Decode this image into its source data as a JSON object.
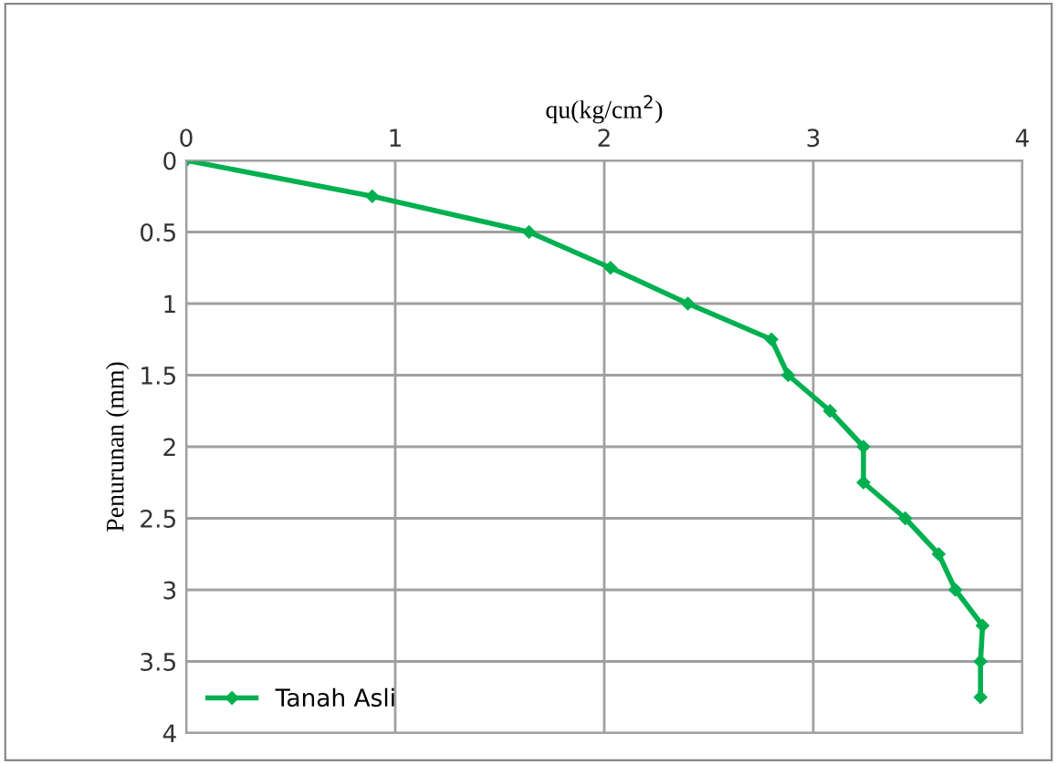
{
  "chart_data": {
    "type": "line",
    "xlabel": "qu(kg/cm$^{2}$)",
    "ylabel": "Penurunan (mm)",
    "xlim": [
      0,
      4
    ],
    "xticks": [
      0,
      1,
      2,
      3,
      4
    ],
    "ylim": [
      4,
      0
    ],
    "yticks": [
      0,
      0.5,
      1,
      1.5,
      2,
      2.5,
      3,
      3.5,
      4
    ],
    "grid": true,
    "legend": "bottom left",
    "marker": "diamond",
    "line_style": "solid",
    "series": [
      {
        "name": "Tanah Asli",
        "color": "#00b050",
        "x": [
          0,
          0.89,
          1.64,
          2.03,
          2.4,
          2.8,
          2.88,
          3.08,
          3.24,
          3.24,
          3.44,
          3.6,
          3.68,
          3.81,
          3.8,
          3.8
        ],
        "values": [
          0,
          0.25,
          0.5,
          0.75,
          1.0,
          1.25,
          1.5,
          1.75,
          2.0,
          2.25,
          2.5,
          2.75,
          3.0,
          3.25,
          3.5,
          3.75
        ]
      }
    ]
  }
}
